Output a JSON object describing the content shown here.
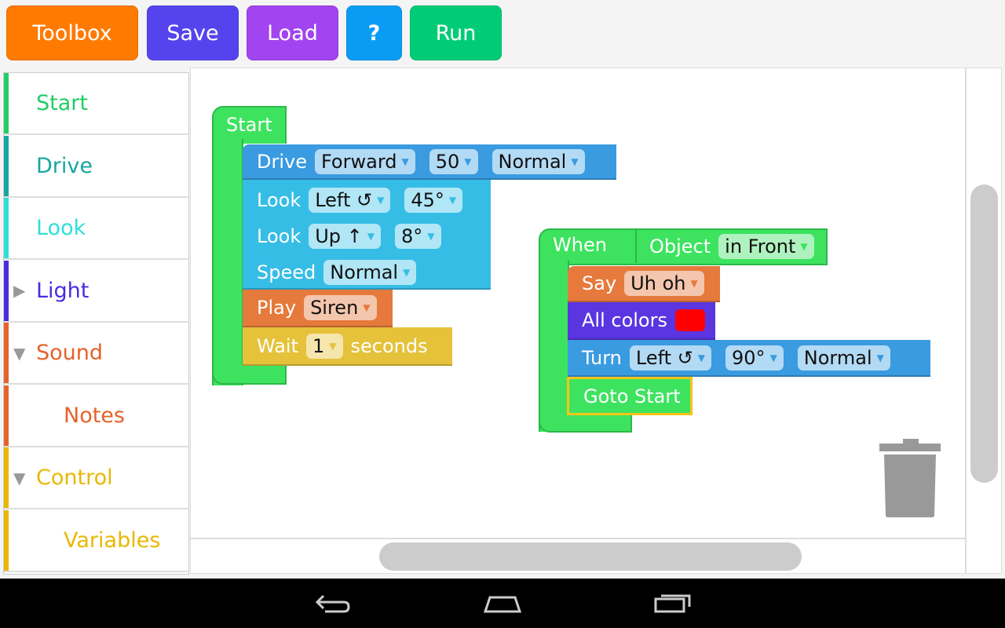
{
  "toolbar": {
    "buttons": [
      {
        "label": "Toolbox",
        "color": "#ff7a00"
      },
      {
        "label": "Save",
        "color": "#5544ee"
      },
      {
        "label": "Load",
        "color": "#a244f0"
      },
      {
        "label": "?",
        "color": "#0a9cf5"
      },
      {
        "label": "Run",
        "color": "#00cc77"
      }
    ]
  },
  "sidebar": {
    "items": [
      {
        "label": "Start",
        "color": "#22cc66",
        "expander": ""
      },
      {
        "label": "Drive",
        "color": "#16a6a0",
        "expander": ""
      },
      {
        "label": "Look",
        "color": "#2ee0d8",
        "expander": ""
      },
      {
        "label": "Light",
        "color": "#4a2be0",
        "expander": "▶"
      },
      {
        "label": "Sound",
        "color": "#e5622a",
        "expander": "▼"
      },
      {
        "label": "Notes",
        "color": "#e5622a",
        "expander": ""
      },
      {
        "label": "Control",
        "color": "#e8b800",
        "expander": "▼"
      },
      {
        "label": "Variables",
        "color": "#e8b800",
        "expander": ""
      }
    ]
  },
  "program1": {
    "start": "Start",
    "drive": {
      "label": "Drive",
      "direction": "Forward",
      "distance": "50",
      "speed": "Normal"
    },
    "look1": {
      "label": "Look",
      "direction": "Left ↺",
      "angle": "45°"
    },
    "look2": {
      "label": "Look",
      "direction": "Up ↑",
      "angle": "8°"
    },
    "speed": {
      "label": "Speed",
      "value": "Normal"
    },
    "play": {
      "label": "Play",
      "sound": "Siren"
    },
    "wait": {
      "label": "Wait",
      "value": "1",
      "unit": "seconds"
    }
  },
  "program2": {
    "when": "When",
    "object": "Object",
    "condition": "in Front",
    "say": {
      "label": "Say",
      "value": "Uh oh"
    },
    "colors": {
      "label": "All colors",
      "color": "#ff0000"
    },
    "turn": {
      "label": "Turn",
      "direction": "Left ↺",
      "angle": "90°",
      "speed": "Normal"
    },
    "goto": "Goto Start"
  }
}
